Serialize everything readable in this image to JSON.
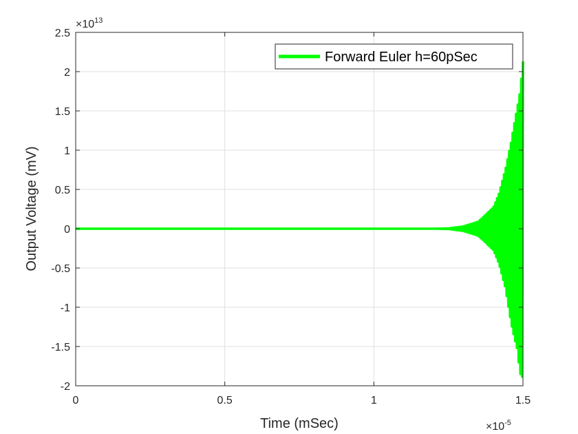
{
  "chart_data": {
    "type": "line",
    "xlabel": "Time (mSec)",
    "ylabel": "Output Voltage (mV)",
    "xlim": [
      0,
      1.5
    ],
    "ylim": [
      -2,
      2.5
    ],
    "x_multiplier": "×10",
    "x_exponent": "-5",
    "y_multiplier": "×10",
    "y_exponent": "13",
    "x_ticks": [
      "0",
      "0.5",
      "1",
      "1.5"
    ],
    "y_ticks": [
      "-2",
      "-1.5",
      "-1",
      "-0.5",
      "0",
      "0.5",
      "1",
      "1.5",
      "2",
      "2.5"
    ],
    "x_tick_values": [
      0,
      0.5,
      1,
      1.5
    ],
    "y_tick_values": [
      -2,
      -1.5,
      -1,
      -0.5,
      0,
      0.5,
      1,
      1.5,
      2,
      2.5
    ],
    "grid": true,
    "legend_position": "top-right",
    "series": [
      {
        "name": "Forward Euler h=60pSec",
        "color": "#00ff00",
        "envelope": {
          "x": [
            0,
            1.2,
            1.25,
            1.3,
            1.35,
            1.4,
            1.42,
            1.44,
            1.46,
            1.48,
            1.49,
            1.5
          ],
          "upper": [
            0,
            0,
            0.005,
            0.03,
            0.09,
            0.27,
            0.45,
            0.75,
            1.1,
            1.55,
            1.75,
            2.13
          ],
          "lower": [
            0,
            0,
            -0.005,
            -0.03,
            -0.09,
            -0.27,
            -0.45,
            -0.75,
            -1.2,
            -1.55,
            -1.85,
            -1.9
          ]
        }
      }
    ]
  }
}
